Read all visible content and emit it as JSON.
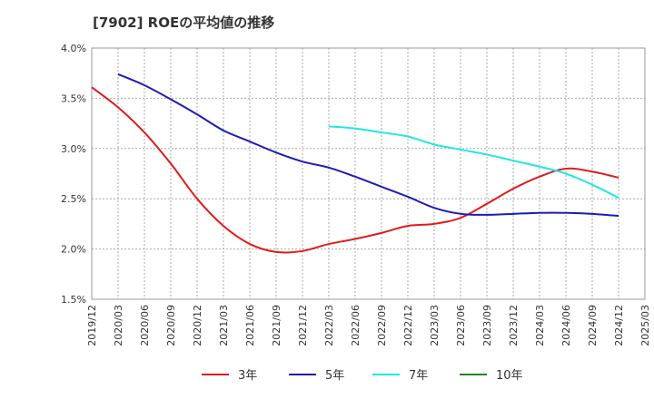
{
  "chart_data": {
    "type": "line",
    "title": "[7902]  ROEの平均値の推移",
    "xlabel": "",
    "ylabel": "",
    "ylim": [
      1.5,
      4.0
    ],
    "grid": true,
    "legend_position": "bottom",
    "y_ticks": [
      1.5,
      2.0,
      2.5,
      3.0,
      3.5,
      4.0
    ],
    "y_tick_labels": [
      "1.5%",
      "2.0%",
      "2.5%",
      "3.0%",
      "3.5%",
      "4.0%"
    ],
    "x_categories": [
      "2019/12",
      "2020/03",
      "2020/06",
      "2020/09",
      "2020/12",
      "2021/03",
      "2021/06",
      "2021/09",
      "2021/12",
      "2022/03",
      "2022/06",
      "2022/09",
      "2022/12",
      "2023/03",
      "2023/06",
      "2023/09",
      "2023/12",
      "2024/03",
      "2024/06",
      "2024/09",
      "2024/12",
      "2025/03"
    ],
    "series": [
      {
        "name": "3年",
        "color": "#dd1c1c",
        "values": [
          3.61,
          3.41,
          3.16,
          2.85,
          2.5,
          2.23,
          2.05,
          1.97,
          1.98,
          2.05,
          2.1,
          2.16,
          2.23,
          2.25,
          2.31,
          2.45,
          2.6,
          2.72,
          2.8,
          2.77,
          2.71,
          null
        ]
      },
      {
        "name": "5年",
        "color": "#1c1cb4",
        "values": [
          null,
          3.74,
          3.63,
          3.49,
          3.34,
          3.18,
          3.07,
          2.96,
          2.87,
          2.81,
          2.72,
          2.62,
          2.52,
          2.41,
          2.35,
          2.34,
          2.35,
          2.36,
          2.36,
          2.35,
          2.33,
          null
        ]
      },
      {
        "name": "7年",
        "color": "#22e6e6",
        "values": [
          null,
          null,
          null,
          null,
          null,
          null,
          null,
          null,
          null,
          3.22,
          3.2,
          3.16,
          3.12,
          3.04,
          2.99,
          2.94,
          2.88,
          2.82,
          2.75,
          2.64,
          2.51,
          null
        ]
      },
      {
        "name": "10年",
        "color": "#1c8a1c",
        "values": [
          null,
          null,
          null,
          null,
          null,
          null,
          null,
          null,
          null,
          null,
          null,
          null,
          null,
          null,
          null,
          null,
          null,
          null,
          null,
          null,
          null,
          null
        ]
      }
    ]
  }
}
